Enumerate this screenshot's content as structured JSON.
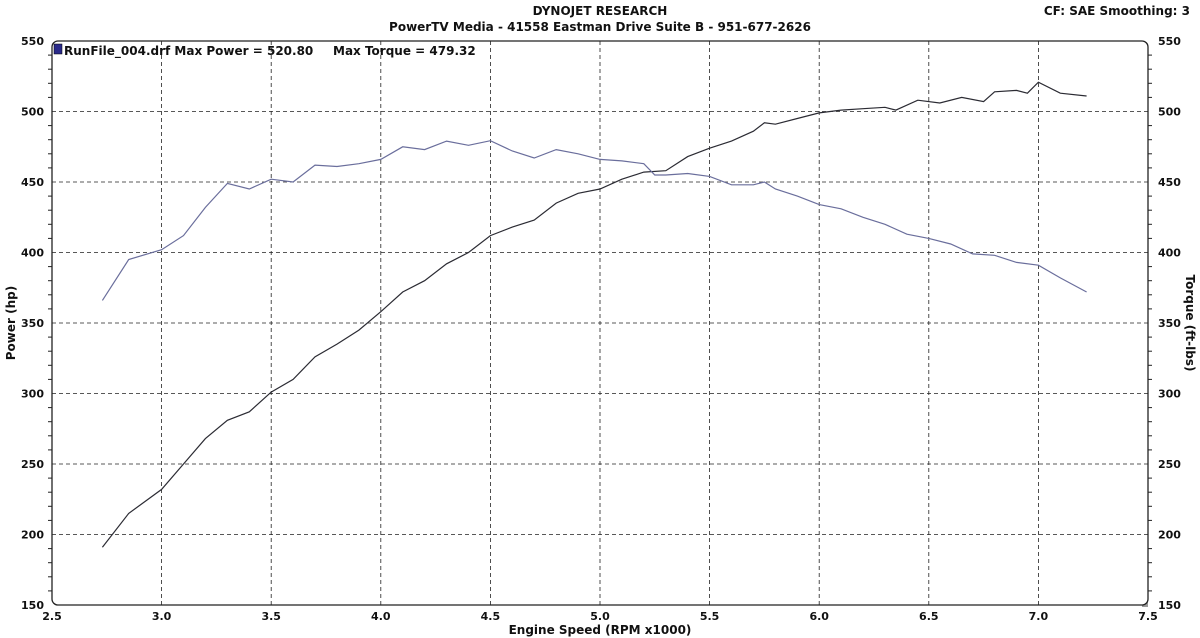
{
  "header": {
    "title": "DYNOJET RESEARCH",
    "subtitle": "PowerTV Media - 41558 Eastman Drive Suite B - 951-677-2626",
    "settings": "CF: SAE  Smoothing: 3"
  },
  "legend": {
    "run": "RunFile_004.drf",
    "max_power": "Max Power = 520.80",
    "max_torque": "Max Torque = 479.32",
    "swatch_color": "#2a2a8a"
  },
  "chart_data": {
    "type": "line",
    "title": "DYNOJET RESEARCH",
    "xlabel": "Engine Speed (RPM x1000)",
    "ylabel": "Power (hp)",
    "y2label": "Torque (ft-lbs)",
    "xlim": [
      2.5,
      7.5
    ],
    "ylim": [
      150,
      550
    ],
    "y2lim": [
      150,
      550
    ],
    "xticks": [
      "2.5",
      "3.0",
      "3.5",
      "4.0",
      "4.5",
      "5.0",
      "5.5",
      "6.0",
      "6.5",
      "7.0",
      "7.5"
    ],
    "yticks": [
      "150",
      "200",
      "250",
      "300",
      "350",
      "400",
      "450",
      "500",
      "550"
    ],
    "grid": true,
    "legend_position": "top-left",
    "series": [
      {
        "name": "Power",
        "color": "#2b2b33",
        "x": [
          2.73,
          2.85,
          3.0,
          3.1,
          3.2,
          3.3,
          3.4,
          3.5,
          3.6,
          3.7,
          3.8,
          3.9,
          4.0,
          4.1,
          4.2,
          4.3,
          4.4,
          4.5,
          4.6,
          4.7,
          4.8,
          4.9,
          5.0,
          5.1,
          5.2,
          5.3,
          5.4,
          5.5,
          5.6,
          5.7,
          5.75,
          5.8,
          5.9,
          6.0,
          6.1,
          6.2,
          6.3,
          6.35,
          6.45,
          6.55,
          6.65,
          6.75,
          6.8,
          6.9,
          6.95,
          7.0,
          7.1,
          7.22
        ],
        "y": [
          191,
          215,
          232,
          250,
          268,
          281,
          287,
          301,
          310,
          326,
          335,
          345,
          358,
          372,
          380,
          392,
          400,
          412,
          418,
          423,
          435,
          442,
          445,
          452,
          457,
          458,
          468,
          474,
          479,
          486,
          492,
          491,
          495,
          499,
          501,
          502,
          503,
          501,
          508,
          506,
          510,
          507,
          514,
          515,
          513,
          520.8,
          513,
          511
        ]
      },
      {
        "name": "Torque",
        "color": "#6a6e9c",
        "x": [
          2.73,
          2.85,
          3.0,
          3.1,
          3.2,
          3.3,
          3.4,
          3.5,
          3.6,
          3.7,
          3.8,
          3.9,
          4.0,
          4.1,
          4.2,
          4.3,
          4.4,
          4.5,
          4.6,
          4.7,
          4.8,
          4.9,
          5.0,
          5.1,
          5.2,
          5.25,
          5.3,
          5.4,
          5.5,
          5.6,
          5.7,
          5.75,
          5.8,
          5.9,
          6.0,
          6.1,
          6.2,
          6.3,
          6.4,
          6.5,
          6.6,
          6.7,
          6.8,
          6.9,
          7.0,
          7.1,
          7.22
        ],
        "y": [
          366,
          395,
          402,
          412,
          432,
          449,
          445,
          452,
          450,
          462,
          461,
          463,
          466,
          475,
          473,
          479,
          476,
          479.3,
          472,
          467,
          473,
          470,
          466,
          465,
          463,
          455,
          455,
          456,
          454,
          448,
          448,
          450,
          445,
          440,
          434,
          431,
          425,
          420,
          413,
          410,
          406,
          399,
          398,
          393,
          391,
          382,
          372
        ]
      }
    ]
  }
}
